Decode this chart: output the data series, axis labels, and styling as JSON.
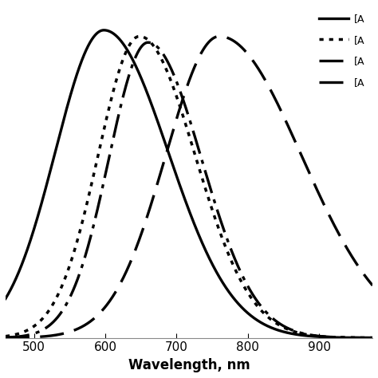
{
  "title": "",
  "xlabel": "Wavelength, nm",
  "ylabel": "",
  "xlim": [
    460,
    975
  ],
  "ylim": [
    0,
    1.08
  ],
  "legend_labels": [
    "[A",
    "[A",
    "[A",
    "[A"
  ],
  "background_color": "#ffffff",
  "line_color": "#000000",
  "xticks": [
    500,
    600,
    700,
    800,
    900
  ],
  "xlabel_fontsize": 12,
  "tick_fontsize": 11,
  "curves": [
    {
      "peak": 598,
      "wl": 68,
      "wr": 90,
      "amp": 1.0,
      "linestyle": "solid",
      "linewidth": 2.4
    },
    {
      "peak": 648,
      "wl": 58,
      "wr": 78,
      "amp": 0.98,
      "linestyle": "dotted",
      "linewidth": 2.5
    },
    {
      "peak": 660,
      "wl": 55,
      "wr": 75,
      "amp": 0.96,
      "linestyle": "dashdot",
      "linewidth": 2.4,
      "peak2": 705,
      "wl2": 30,
      "wr2": 50,
      "amp2": 0.3
    },
    {
      "peak": 760,
      "wl": 75,
      "wr": 115,
      "amp": 0.98,
      "linestyle": "dashed",
      "linewidth": 2.4
    }
  ]
}
